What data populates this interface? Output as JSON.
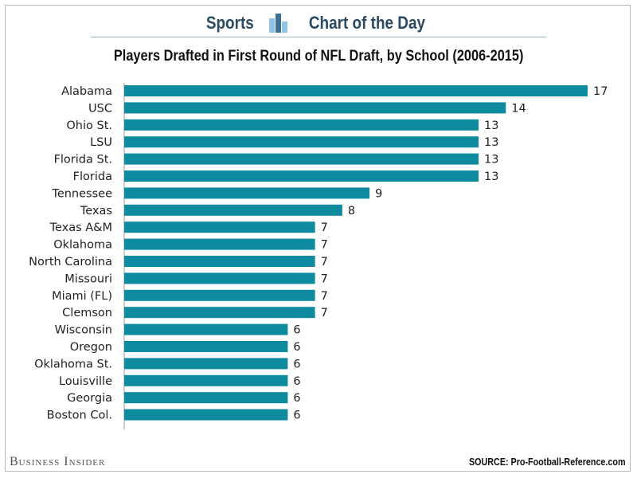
{
  "header": {
    "left_word": "Sports",
    "right_word": "Chart of the Day"
  },
  "footer": {
    "brand": "Business Insider",
    "source": "SOURCE: Pro-Football-Reference.com"
  },
  "colors": {
    "bar": "#0f8ba0",
    "header_blue_dark": "#3b6f93",
    "header_blue_light": "#8fc3e6"
  },
  "chart_data": {
    "type": "bar",
    "orientation": "horizontal",
    "title": "Players Drafted in First Round of NFL Draft, by School (2006-2015)",
    "categories": [
      "Alabama",
      "USC",
      "Ohio St.",
      "LSU",
      "Florida St.",
      "Florida",
      "Tennessee",
      "Texas",
      "Texas A&M",
      "Oklahoma",
      "North Carolina",
      "Missouri",
      "Miami (FL)",
      "Clemson",
      "Wisconsin",
      "Oregon",
      "Oklahoma St.",
      "Louisville",
      "Georgia",
      "Boston Col."
    ],
    "values": [
      17,
      14,
      13,
      13,
      13,
      13,
      9,
      8,
      7,
      7,
      7,
      7,
      7,
      7,
      6,
      6,
      6,
      6,
      6,
      6
    ],
    "xlim": [
      0,
      17
    ],
    "grid": false,
    "data_labels": true
  }
}
